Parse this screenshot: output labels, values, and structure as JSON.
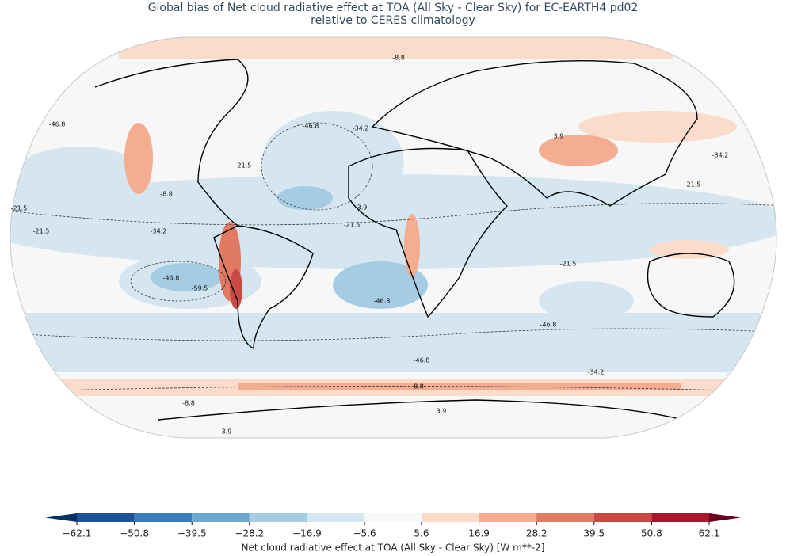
{
  "header": {
    "title": "Global bias of Net cloud radiative effect at TOA (All Sky - Clear Sky) for EC-EARTH4 pd02",
    "subtitle": "relative to CERES climatology"
  },
  "colorbar": {
    "label": "Net cloud radiative effect at TOA (All Sky - Clear Sky) [W m**-2]",
    "ticks": [
      {
        "value": -62.1,
        "label": "−62.1"
      },
      {
        "value": -50.8,
        "label": "−50.8"
      },
      {
        "value": -39.5,
        "label": "−39.5"
      },
      {
        "value": -28.2,
        "label": "−28.2"
      },
      {
        "value": -16.9,
        "label": "−16.9"
      },
      {
        "value": -5.6,
        "label": "−5.6"
      },
      5.6,
      16.9,
      28.2,
      39.5,
      50.8,
      62.1
    ],
    "colors": [
      "#1b5597",
      "#3b7dba",
      "#6da6d0",
      "#a6cce3",
      "#d6e6f1",
      "#f7f7f7",
      "#fbdbc9",
      "#f4ad90",
      "#e17a62",
      "#c84a45",
      "#a8182c"
    ],
    "under_color": "#053061",
    "over_color": "#67001f"
  },
  "map": {
    "contour_labels": [
      "-46.8",
      "-46.8",
      "-46.8",
      "-46.8",
      "-46.8",
      "-46.8",
      "-34.2",
      "-34.2",
      "-34.2",
      "-34.2",
      "-21.5",
      "-21.5",
      "-21.5",
      "-21.5",
      "-21.5",
      "-21.5",
      "-8.8",
      "-8.8",
      "-8.8",
      "-8.8",
      "3.9",
      "3.9",
      "3.9",
      "3.9",
      "-59.5"
    ]
  }
}
